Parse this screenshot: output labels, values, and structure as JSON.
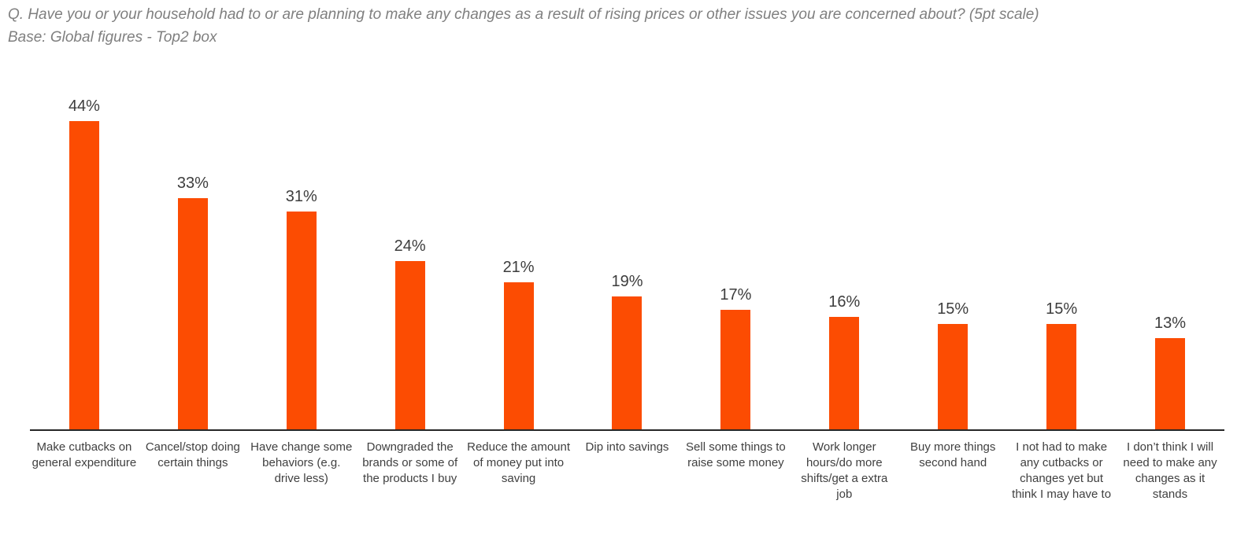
{
  "chart_data": {
    "type": "bar",
    "title": "Q. Have you or your household had to or are planning to make any changes as a result of rising prices or other issues you are concerned about? (5pt scale)",
    "subtitle": "Base: Global figures - Top2 box",
    "categories": [
      "Make cutbacks on general expenditure",
      "Cancel/stop doing certain things",
      "Have change some behaviors (e.g. drive less)",
      "Downgraded the brands or some of the products I buy",
      "Reduce the amount of money put into saving",
      "Dip into savings",
      "Sell some things to raise some money",
      "Work longer hours/do more shifts/get a extra job",
      "Buy more things second hand",
      "I not had to make any cutbacks or changes yet but think I may have to",
      "I don’t think I will need to make any changes as it stands"
    ],
    "values": [
      44,
      33,
      31,
      24,
      21,
      19,
      17,
      16,
      15,
      15,
      13
    ],
    "value_suffix": "%",
    "xlabel": "",
    "ylabel": "",
    "ylim": [
      0,
      50
    ],
    "grid": false,
    "legend": false,
    "data_labels_position": "above-bar",
    "colors": {
      "bar": "#fc4c02",
      "title": "#7f7f7f",
      "value_label": "#3d3d3d",
      "category_label": "#404040",
      "axis_line": "#262626"
    }
  }
}
